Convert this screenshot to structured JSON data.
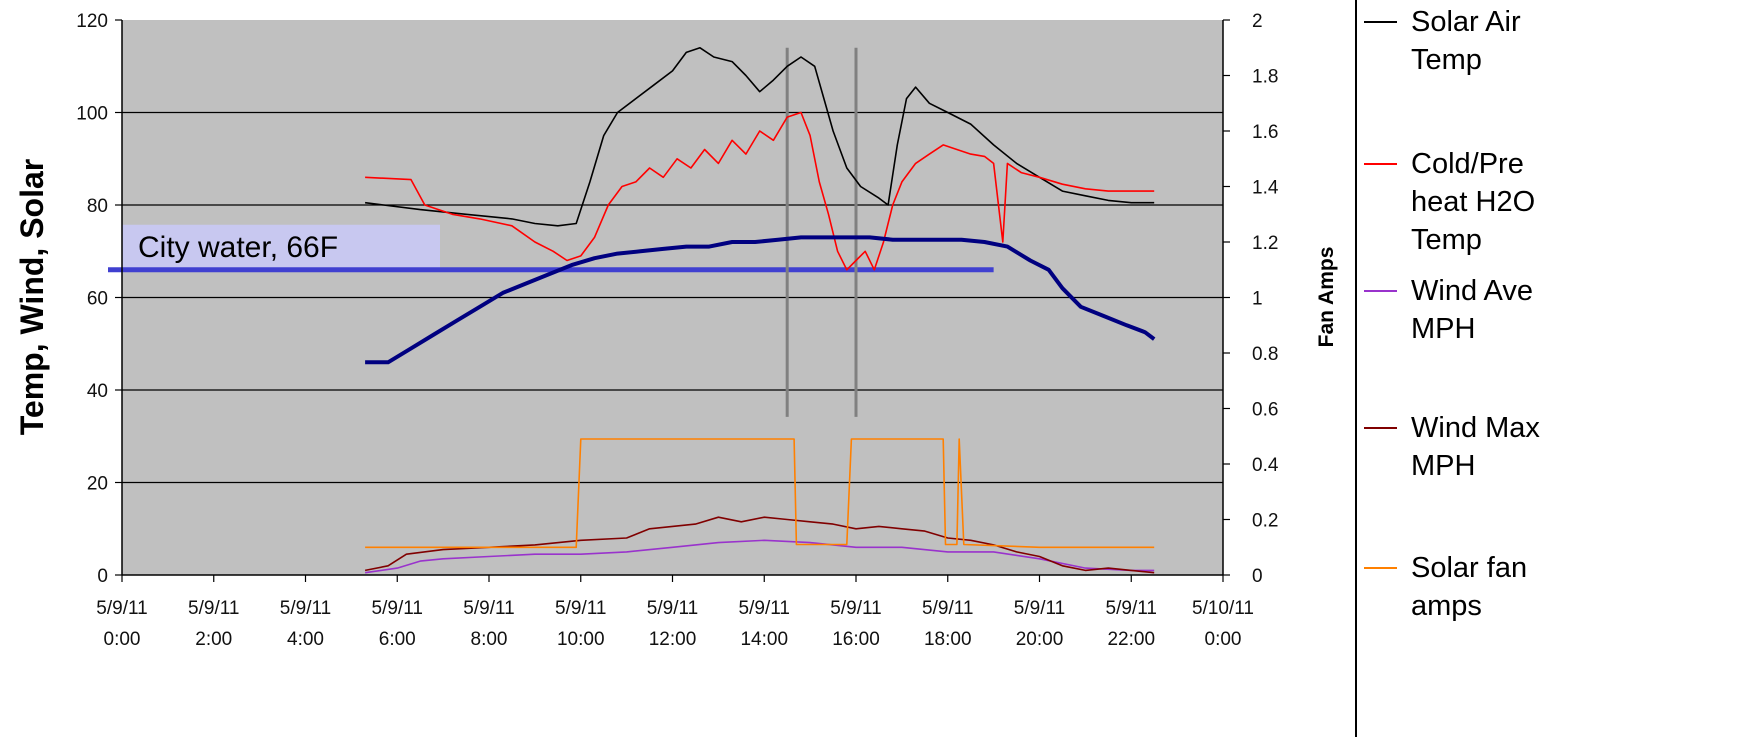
{
  "chart_data": {
    "type": "line",
    "x_axis": {
      "min_hours": 0,
      "max_hours": 24,
      "ticks": [
        {
          "hour": 0,
          "label_line1": "5/9/11",
          "label_line2": "0:00"
        },
        {
          "hour": 2,
          "label_line1": "5/9/11",
          "label_line2": "2:00"
        },
        {
          "hour": 4,
          "label_line1": "5/9/11",
          "label_line2": "4:00"
        },
        {
          "hour": 6,
          "label_line1": "5/9/11",
          "label_line2": "6:00"
        },
        {
          "hour": 8,
          "label_line1": "5/9/11",
          "label_line2": "8:00"
        },
        {
          "hour": 10,
          "label_line1": "5/9/11",
          "label_line2": "10:00"
        },
        {
          "hour": 12,
          "label_line1": "5/9/11",
          "label_line2": "12:00"
        },
        {
          "hour": 14,
          "label_line1": "5/9/11",
          "label_line2": "14:00"
        },
        {
          "hour": 16,
          "label_line1": "5/9/11",
          "label_line2": "16:00"
        },
        {
          "hour": 18,
          "label_line1": "5/9/11",
          "label_line2": "18:00"
        },
        {
          "hour": 20,
          "label_line1": "5/9/11",
          "label_line2": "20:00"
        },
        {
          "hour": 22,
          "label_line1": "5/9/11",
          "label_line2": "22:00"
        },
        {
          "hour": 24,
          "label_line1": "5/10/11",
          "label_line2": "0:00"
        }
      ]
    },
    "y_left": {
      "label": "Temp, Wind, Solar",
      "min": 0,
      "max": 120,
      "ticks": [
        "0",
        "20",
        "40",
        "60",
        "80",
        "100",
        "120"
      ],
      "gridlines": [
        20,
        40,
        60,
        80,
        100
      ]
    },
    "y_right": {
      "label": "Fan Amps",
      "min": 0,
      "max": 2,
      "ticks": [
        "0",
        "0.2",
        "0.4",
        "0.6",
        "0.8",
        "1",
        "1.2",
        "1.4",
        "1.6",
        "1.8",
        "2"
      ]
    },
    "plot_background": "#c0c0c0",
    "series": [
      {
        "name": "Solar Air Temp",
        "color": "#000000",
        "axis": "left",
        "points": [
          [
            5.3,
            80.5
          ],
          [
            5.7,
            80
          ],
          [
            6.5,
            79
          ],
          [
            7.0,
            78.5
          ],
          [
            7.5,
            78
          ],
          [
            8.0,
            77.5
          ],
          [
            8.5,
            77
          ],
          [
            9.0,
            76
          ],
          [
            9.5,
            75.5
          ],
          [
            9.9,
            76
          ],
          [
            10.2,
            85
          ],
          [
            10.5,
            95
          ],
          [
            10.8,
            100
          ],
          [
            11.2,
            103
          ],
          [
            11.6,
            106
          ],
          [
            12.0,
            109
          ],
          [
            12.3,
            113
          ],
          [
            12.6,
            114
          ],
          [
            12.9,
            112
          ],
          [
            13.3,
            111
          ],
          [
            13.6,
            108
          ],
          [
            13.9,
            104.5
          ],
          [
            14.2,
            107
          ],
          [
            14.5,
            110
          ],
          [
            14.8,
            112
          ],
          [
            15.1,
            110
          ],
          [
            15.3,
            103
          ],
          [
            15.5,
            96
          ],
          [
            15.8,
            88
          ],
          [
            16.1,
            84
          ],
          [
            16.5,
            81.5
          ],
          [
            16.7,
            80
          ],
          [
            16.9,
            93
          ],
          [
            17.1,
            103
          ],
          [
            17.3,
            105.5
          ],
          [
            17.6,
            102
          ],
          [
            18.0,
            100
          ],
          [
            18.5,
            97.5
          ],
          [
            19.0,
            93
          ],
          [
            19.5,
            89
          ],
          [
            20.0,
            86
          ],
          [
            20.5,
            83
          ],
          [
            21.0,
            82
          ],
          [
            21.5,
            81
          ],
          [
            22.0,
            80.5
          ],
          [
            22.5,
            80.5
          ]
        ]
      },
      {
        "name": "Cold/Pre heat H2O Temp",
        "color": "#ff0000",
        "axis": "left",
        "points": [
          [
            5.3,
            86
          ],
          [
            6.3,
            85.5
          ],
          [
            6.6,
            80
          ],
          [
            7.2,
            78
          ],
          [
            7.8,
            77
          ],
          [
            8.5,
            75.5
          ],
          [
            9.0,
            72
          ],
          [
            9.4,
            70
          ],
          [
            9.7,
            68
          ],
          [
            10.0,
            69
          ],
          [
            10.3,
            73
          ],
          [
            10.6,
            80
          ],
          [
            10.9,
            84
          ],
          [
            11.2,
            85
          ],
          [
            11.5,
            88
          ],
          [
            11.8,
            86
          ],
          [
            12.1,
            90
          ],
          [
            12.4,
            88
          ],
          [
            12.7,
            92
          ],
          [
            13.0,
            89
          ],
          [
            13.3,
            94
          ],
          [
            13.6,
            91
          ],
          [
            13.9,
            96
          ],
          [
            14.2,
            94
          ],
          [
            14.5,
            99
          ],
          [
            14.8,
            100
          ],
          [
            15.0,
            95
          ],
          [
            15.2,
            85
          ],
          [
            15.4,
            78
          ],
          [
            15.6,
            70
          ],
          [
            15.8,
            66
          ],
          [
            16.0,
            68
          ],
          [
            16.2,
            70
          ],
          [
            16.4,
            66
          ],
          [
            16.6,
            72
          ],
          [
            16.8,
            80
          ],
          [
            17.0,
            85
          ],
          [
            17.3,
            89
          ],
          [
            17.6,
            91
          ],
          [
            17.9,
            93
          ],
          [
            18.2,
            92
          ],
          [
            18.5,
            91
          ],
          [
            18.8,
            90.5
          ],
          [
            19.0,
            89
          ],
          [
            19.2,
            72
          ],
          [
            19.3,
            89
          ],
          [
            19.6,
            87
          ],
          [
            20.0,
            86
          ],
          [
            20.5,
            84.5
          ],
          [
            21.0,
            83.5
          ],
          [
            21.5,
            83
          ],
          [
            22.0,
            83
          ],
          [
            22.5,
            83
          ]
        ]
      },
      {
        "name": "Wind Ave MPH",
        "color": "#9933cc",
        "axis": "left",
        "points": [
          [
            5.3,
            0.5
          ],
          [
            6.0,
            1.5
          ],
          [
            6.5,
            3
          ],
          [
            7.0,
            3.5
          ],
          [
            8.0,
            4
          ],
          [
            9.0,
            4.5
          ],
          [
            10.0,
            4.5
          ],
          [
            11.0,
            5
          ],
          [
            12.0,
            6
          ],
          [
            13.0,
            7
          ],
          [
            14.0,
            7.5
          ],
          [
            15.0,
            7
          ],
          [
            16.0,
            6
          ],
          [
            17.0,
            6
          ],
          [
            18.0,
            5
          ],
          [
            19.0,
            5
          ],
          [
            20.0,
            3.5
          ],
          [
            21.0,
            1.5
          ],
          [
            22.0,
            1
          ],
          [
            22.5,
            1
          ]
        ]
      },
      {
        "name": "Wind Max MPH",
        "color": "#800000",
        "axis": "left",
        "points": [
          [
            5.3,
            1
          ],
          [
            5.8,
            2
          ],
          [
            6.2,
            4.5
          ],
          [
            7.0,
            5.5
          ],
          [
            8.0,
            6
          ],
          [
            9.0,
            6.5
          ],
          [
            10.0,
            7.5
          ],
          [
            11.0,
            8
          ],
          [
            11.5,
            10
          ],
          [
            12.0,
            10.5
          ],
          [
            12.5,
            11
          ],
          [
            13.0,
            12.5
          ],
          [
            13.5,
            11.5
          ],
          [
            14.0,
            12.5
          ],
          [
            14.5,
            12
          ],
          [
            15.0,
            11.5
          ],
          [
            15.5,
            11
          ],
          [
            16.0,
            10
          ],
          [
            16.5,
            10.5
          ],
          [
            17.0,
            10
          ],
          [
            17.5,
            9.5
          ],
          [
            18.0,
            8
          ],
          [
            18.5,
            7.5
          ],
          [
            19.0,
            6.5
          ],
          [
            19.5,
            5
          ],
          [
            20.0,
            4
          ],
          [
            20.5,
            2
          ],
          [
            21.0,
            1
          ],
          [
            21.5,
            1.5
          ],
          [
            22.0,
            1
          ],
          [
            22.5,
            0.5
          ]
        ]
      },
      {
        "name": "Solar fan amps",
        "color": "#ff8000",
        "axis": "right",
        "points": [
          [
            5.3,
            0.1
          ],
          [
            9.9,
            0.1
          ],
          [
            10.0,
            0.49
          ],
          [
            14.65,
            0.49
          ],
          [
            14.7,
            0.11
          ],
          [
            15.8,
            0.11
          ],
          [
            15.9,
            0.49
          ],
          [
            17.9,
            0.49
          ],
          [
            17.95,
            0.11
          ],
          [
            18.2,
            0.11
          ],
          [
            18.25,
            0.49
          ],
          [
            18.35,
            0.11
          ],
          [
            20.0,
            0.1
          ],
          [
            22.5,
            0.1
          ]
        ]
      },
      {
        "name": "",
        "color": "#000080",
        "axis": "left",
        "points": [
          [
            5.3,
            46
          ],
          [
            5.8,
            46
          ],
          [
            6.3,
            49
          ],
          [
            6.8,
            52
          ],
          [
            7.3,
            55
          ],
          [
            7.8,
            58
          ],
          [
            8.3,
            61
          ],
          [
            8.8,
            63
          ],
          [
            9.3,
            65
          ],
          [
            9.8,
            67
          ],
          [
            10.3,
            68.5
          ],
          [
            10.8,
            69.5
          ],
          [
            11.3,
            70
          ],
          [
            11.8,
            70.5
          ],
          [
            12.3,
            71
          ],
          [
            12.8,
            71
          ],
          [
            13.3,
            72
          ],
          [
            13.8,
            72
          ],
          [
            14.3,
            72.5
          ],
          [
            14.8,
            73
          ],
          [
            15.3,
            73
          ],
          [
            15.8,
            73
          ],
          [
            16.3,
            73
          ],
          [
            16.8,
            72.5
          ],
          [
            17.3,
            72.5
          ],
          [
            17.8,
            72.5
          ],
          [
            18.3,
            72.5
          ],
          [
            18.8,
            72
          ],
          [
            19.3,
            71
          ],
          [
            19.8,
            68
          ],
          [
            20.2,
            66
          ],
          [
            20.5,
            62
          ],
          [
            20.9,
            58
          ],
          [
            21.4,
            56
          ],
          [
            21.9,
            54
          ],
          [
            22.3,
            52.5
          ],
          [
            22.5,
            51
          ]
        ]
      }
    ],
    "annotations": {
      "city_water_label": "City water, 66F",
      "city_water_value": 66,
      "city_water_line_end_hour": 19.0,
      "vertical_markers_hours": [
        14.5,
        16.0
      ],
      "vertical_markers_range_amps": [
        0.57,
        1.9
      ]
    },
    "legend_position": "right",
    "legend_entries": [
      {
        "lines": [
          "Solar Air",
          "Temp"
        ],
        "color": "#000000"
      },
      {
        "lines": [
          "Cold/Pre",
          "heat H2O",
          "Temp"
        ],
        "color": "#ff0000"
      },
      {
        "lines": [
          "Wind Ave",
          "MPH"
        ],
        "color": "#9933cc"
      },
      {
        "lines": [
          "Wind Max",
          "MPH"
        ],
        "color": "#800000"
      },
      {
        "lines": [
          "Solar fan",
          "amps"
        ],
        "color": "#ff8000"
      }
    ]
  }
}
